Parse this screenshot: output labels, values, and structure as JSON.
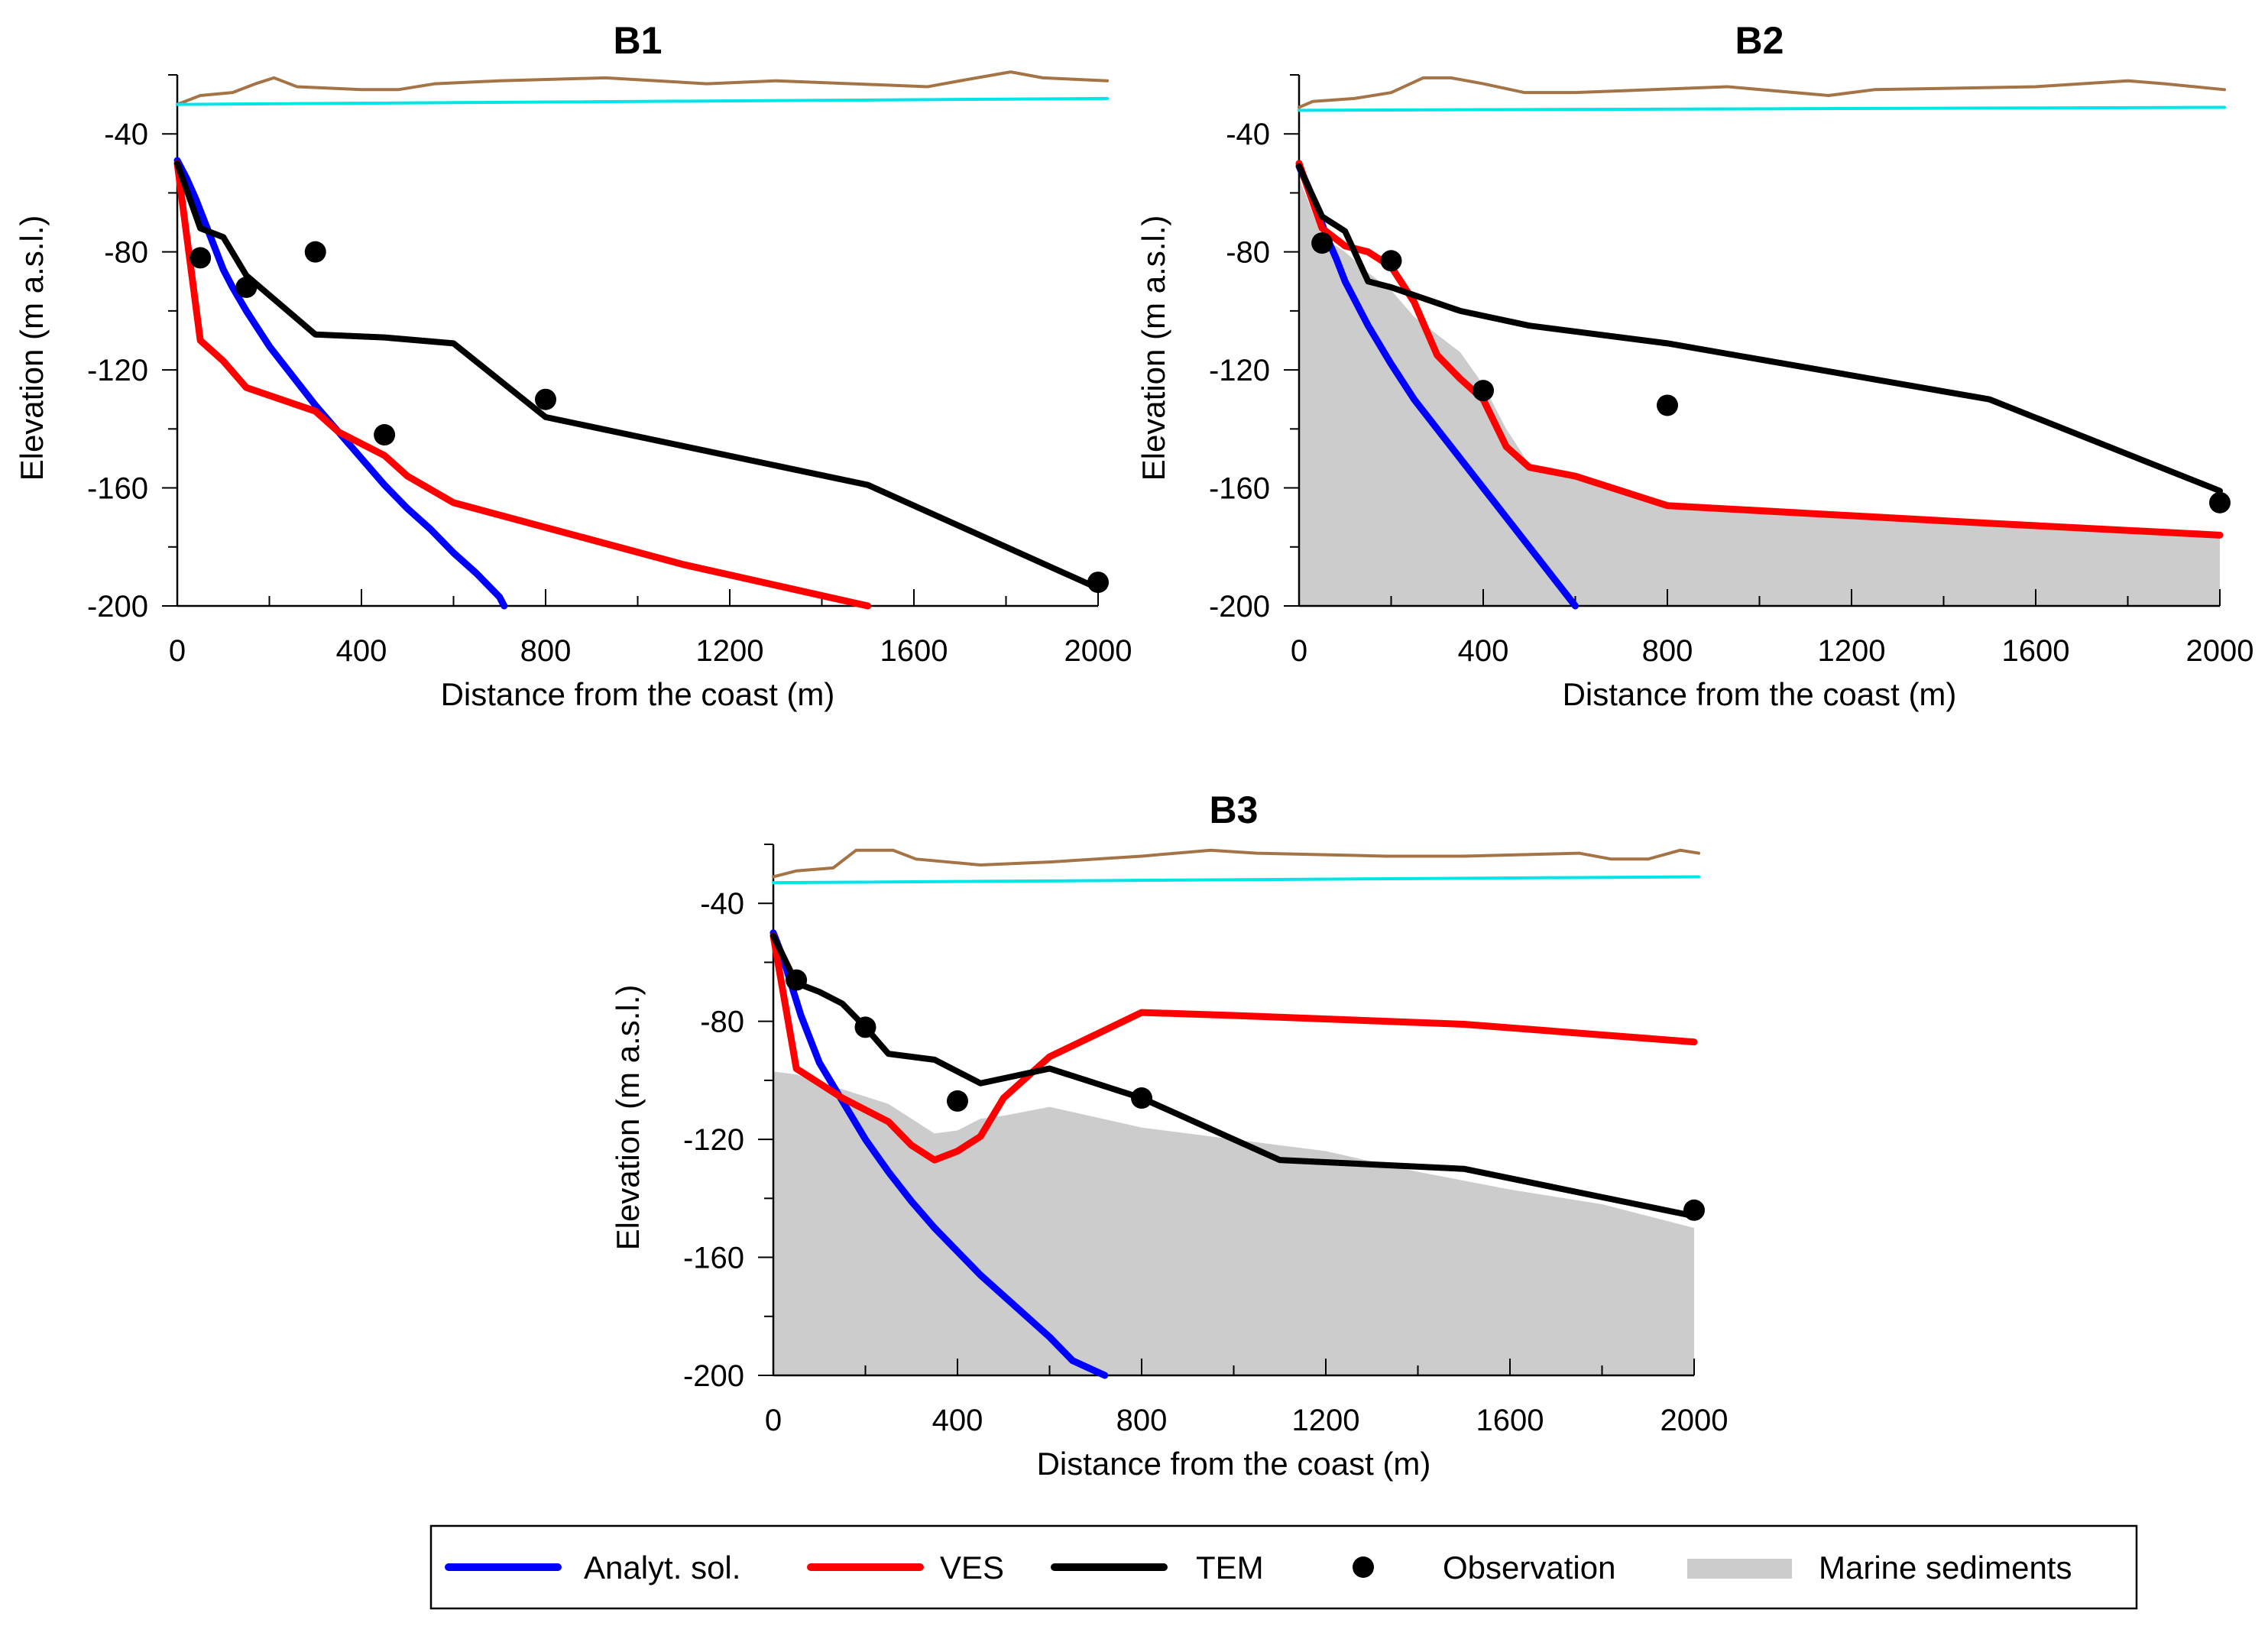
{
  "chart_data": [
    {
      "type": "line",
      "title": "B1",
      "xlabel": "Distance from the coast (m)",
      "ylabel": "Elevation (m a.s.l.)",
      "xlim": [
        0,
        2000
      ],
      "ylim": [
        -200,
        -20
      ],
      "xticks": [
        0,
        400,
        800,
        1200,
        1600,
        2000
      ],
      "yticks": [
        -40,
        -80,
        -120,
        -160,
        -200
      ],
      "series": [
        {
          "name": "Topography",
          "color": "#a57446",
          "points": [
            [
              0,
              -30
            ],
            [
              50,
              -27
            ],
            [
              120,
              -26
            ],
            [
              170,
              -23
            ],
            [
              210,
              -21
            ],
            [
              260,
              -24
            ],
            [
              400,
              -25
            ],
            [
              480,
              -25
            ],
            [
              560,
              -23
            ],
            [
              700,
              -22
            ],
            [
              930,
              -21
            ],
            [
              1150,
              -23
            ],
            [
              1300,
              -22
            ],
            [
              1630,
              -24
            ],
            [
              1700,
              -22
            ],
            [
              1810,
              -19
            ],
            [
              1880,
              -21
            ],
            [
              2020,
              -22
            ]
          ]
        },
        {
          "name": "Sea level",
          "color": "#00e5e5",
          "points": [
            [
              0,
              -30
            ],
            [
              2020,
              -28
            ]
          ]
        },
        {
          "name": "Analyt. sol.",
          "color": "#0000ff",
          "points": [
            [
              0,
              -49
            ],
            [
              20,
              -55
            ],
            [
              40,
              -62
            ],
            [
              60,
              -70
            ],
            [
              80,
              -78
            ],
            [
              100,
              -86
            ],
            [
              120,
              -92
            ],
            [
              150,
              -100
            ],
            [
              200,
              -112
            ],
            [
              250,
              -122
            ],
            [
              300,
              -132
            ],
            [
              350,
              -141
            ],
            [
              400,
              -150
            ],
            [
              450,
              -159
            ],
            [
              500,
              -167
            ],
            [
              550,
              -174
            ],
            [
              600,
              -182
            ],
            [
              650,
              -189
            ],
            [
              700,
              -197
            ],
            [
              710,
              -200
            ]
          ]
        },
        {
          "name": "VES",
          "color": "#ff0000",
          "points": [
            [
              0,
              -50
            ],
            [
              50,
              -110
            ],
            [
              100,
              -117
            ],
            [
              150,
              -126
            ],
            [
              300,
              -134
            ],
            [
              350,
              -141
            ],
            [
              450,
              -149
            ],
            [
              500,
              -156
            ],
            [
              600,
              -165
            ],
            [
              1100,
              -186
            ],
            [
              1500,
              -200
            ]
          ]
        },
        {
          "name": "TEM",
          "color": "#000000",
          "points": [
            [
              0,
              -50
            ],
            [
              50,
              -72
            ],
            [
              100,
              -75
            ],
            [
              150,
              -88
            ],
            [
              300,
              -108
            ],
            [
              450,
              -109
            ],
            [
              600,
              -111
            ],
            [
              800,
              -136
            ],
            [
              1500,
              -159
            ],
            [
              2000,
              -194
            ]
          ]
        },
        {
          "name": "Observation",
          "color": "#000000",
          "points": [
            [
              50,
              -82
            ],
            [
              150,
              -92
            ],
            [
              300,
              -80
            ],
            [
              450,
              -142
            ],
            [
              800,
              -130
            ],
            [
              2000,
              -192
            ]
          ]
        }
      ]
    },
    {
      "type": "line",
      "title": "B2",
      "xlabel": "Distance from the coast (m)",
      "ylabel": "Elevation (m a.s.l.)",
      "xlim": [
        0,
        2000
      ],
      "ylim": [
        -200,
        -20
      ],
      "xticks": [
        0,
        400,
        800,
        1200,
        1600,
        2000
      ],
      "yticks": [
        -40,
        -80,
        -120,
        -160,
        -200
      ],
      "series": [
        {
          "name": "Marine sediments",
          "color": "#cccccc",
          "points": [
            [
              0,
              -55
            ],
            [
              50,
              -75
            ],
            [
              100,
              -80
            ],
            [
              150,
              -87
            ],
            [
              200,
              -93
            ],
            [
              250,
              -102
            ],
            [
              350,
              -114
            ],
            [
              400,
              -125
            ],
            [
              450,
              -140
            ],
            [
              500,
              -152
            ],
            [
              600,
              -156
            ],
            [
              800,
              -166
            ],
            [
              1500,
              -172
            ],
            [
              2000,
              -177
            ]
          ]
        },
        {
          "name": "Topography",
          "color": "#a57446",
          "points": [
            [
              0,
              -31
            ],
            [
              30,
              -29
            ],
            [
              120,
              -28
            ],
            [
              200,
              -26
            ],
            [
              270,
              -21
            ],
            [
              330,
              -21
            ],
            [
              400,
              -23
            ],
            [
              490,
              -26
            ],
            [
              600,
              -26
            ],
            [
              930,
              -24
            ],
            [
              1150,
              -27
            ],
            [
              1250,
              -25
            ],
            [
              1600,
              -24
            ],
            [
              1800,
              -22
            ],
            [
              1880,
              -23
            ],
            [
              2010,
              -25
            ]
          ]
        },
        {
          "name": "Sea level",
          "color": "#00e5e5",
          "points": [
            [
              0,
              -32
            ],
            [
              2010,
              -31
            ]
          ]
        },
        {
          "name": "Analyt. sol.",
          "color": "#0000ff",
          "points": [
            [
              0,
              -51
            ],
            [
              20,
              -58
            ],
            [
              40,
              -66
            ],
            [
              60,
              -75
            ],
            [
              80,
              -82
            ],
            [
              100,
              -90
            ],
            [
              150,
              -105
            ],
            [
              200,
              -118
            ],
            [
              250,
              -130
            ],
            [
              300,
              -140
            ],
            [
              350,
              -150
            ],
            [
              400,
              -160
            ],
            [
              450,
              -170
            ],
            [
              500,
              -180
            ],
            [
              550,
              -190
            ],
            [
              600,
              -200
            ]
          ]
        },
        {
          "name": "VES",
          "color": "#ff0000",
          "points": [
            [
              0,
              -50
            ],
            [
              50,
              -72
            ],
            [
              100,
              -78
            ],
            [
              150,
              -80
            ],
            [
              200,
              -85
            ],
            [
              250,
              -97
            ],
            [
              300,
              -115
            ],
            [
              350,
              -123
            ],
            [
              400,
              -130
            ],
            [
              450,
              -146
            ],
            [
              500,
              -153
            ],
            [
              600,
              -156
            ],
            [
              800,
              -166
            ],
            [
              1500,
              -172
            ],
            [
              2000,
              -176
            ]
          ]
        },
        {
          "name": "TEM",
          "color": "#000000",
          "points": [
            [
              0,
              -51
            ],
            [
              50,
              -68
            ],
            [
              100,
              -73
            ],
            [
              150,
              -90
            ],
            [
              200,
              -92
            ],
            [
              350,
              -100
            ],
            [
              500,
              -105
            ],
            [
              800,
              -111
            ],
            [
              1500,
              -130
            ],
            [
              2000,
              -161
            ]
          ]
        },
        {
          "name": "Observation",
          "color": "#000000",
          "points": [
            [
              50,
              -77
            ],
            [
              200,
              -83
            ],
            [
              400,
              -127
            ],
            [
              800,
              -132
            ],
            [
              2000,
              -165
            ]
          ]
        }
      ]
    },
    {
      "type": "line",
      "title": "B3",
      "xlabel": "Distance from the coast (m)",
      "ylabel": "Elevation (m a.s.l.)",
      "xlim": [
        0,
        2000
      ],
      "ylim": [
        -200,
        -20
      ],
      "xticks": [
        0,
        400,
        800,
        1200,
        1600,
        2000
      ],
      "yticks": [
        -40,
        -80,
        -120,
        -160,
        -200
      ],
      "series": [
        {
          "name": "Marine sediments",
          "color": "#cccccc",
          "points": [
            [
              0,
              -97
            ],
            [
              50,
              -98
            ],
            [
              100,
              -101
            ],
            [
              150,
              -103
            ],
            [
              250,
              -108
            ],
            [
              350,
              -118
            ],
            [
              400,
              -117
            ],
            [
              450,
              -113
            ],
            [
              500,
              -112
            ],
            [
              600,
              -109
            ],
            [
              800,
              -116
            ],
            [
              1000,
              -120
            ],
            [
              1200,
              -124
            ],
            [
              1400,
              -131
            ],
            [
              1600,
              -137
            ],
            [
              1800,
              -142
            ],
            [
              2000,
              -150
            ]
          ]
        },
        {
          "name": "Topography",
          "color": "#a57446",
          "points": [
            [
              0,
              -31
            ],
            [
              50,
              -29
            ],
            [
              130,
              -28
            ],
            [
              180,
              -22
            ],
            [
              260,
              -22
            ],
            [
              310,
              -25
            ],
            [
              450,
              -27
            ],
            [
              600,
              -26
            ],
            [
              800,
              -24
            ],
            [
              950,
              -22
            ],
            [
              1050,
              -23
            ],
            [
              1330,
              -24
            ],
            [
              1500,
              -24
            ],
            [
              1750,
              -23
            ],
            [
              1820,
              -25
            ],
            [
              1900,
              -25
            ],
            [
              1970,
              -22
            ],
            [
              2010,
              -23
            ]
          ]
        },
        {
          "name": "Sea level",
          "color": "#00e5e5",
          "points": [
            [
              0,
              -33
            ],
            [
              2010,
              -31
            ]
          ]
        },
        {
          "name": "Analyt. sol.",
          "color": "#0000ff",
          "points": [
            [
              0,
              -50
            ],
            [
              20,
              -58
            ],
            [
              40,
              -68
            ],
            [
              60,
              -78
            ],
            [
              80,
              -86
            ],
            [
              100,
              -94
            ],
            [
              150,
              -107
            ],
            [
              200,
              -120
            ],
            [
              250,
              -131
            ],
            [
              300,
              -141
            ],
            [
              350,
              -150
            ],
            [
              400,
              -158
            ],
            [
              450,
              -166
            ],
            [
              500,
              -173
            ],
            [
              550,
              -180
            ],
            [
              600,
              -187
            ],
            [
              650,
              -195
            ],
            [
              720,
              -200
            ]
          ]
        },
        {
          "name": "VES",
          "color": "#ff0000",
          "points": [
            [
              0,
              -51
            ],
            [
              50,
              -96
            ],
            [
              100,
              -101
            ],
            [
              150,
              -106
            ],
            [
              200,
              -110
            ],
            [
              250,
              -114
            ],
            [
              300,
              -122
            ],
            [
              350,
              -127
            ],
            [
              400,
              -124
            ],
            [
              450,
              -119
            ],
            [
              500,
              -106
            ],
            [
              600,
              -92
            ],
            [
              800,
              -77
            ],
            [
              1000,
              -78
            ],
            [
              1500,
              -81
            ],
            [
              2000,
              -87
            ]
          ]
        },
        {
          "name": "TEM",
          "color": "#000000",
          "points": [
            [
              0,
              -51
            ],
            [
              50,
              -67
            ],
            [
              100,
              -70
            ],
            [
              150,
              -74
            ],
            [
              200,
              -82
            ],
            [
              250,
              -91
            ],
            [
              350,
              -93
            ],
            [
              450,
              -101
            ],
            [
              600,
              -96
            ],
            [
              800,
              -106
            ],
            [
              1100,
              -127
            ],
            [
              1500,
              -130
            ],
            [
              2000,
              -146
            ]
          ]
        },
        {
          "name": "Observation",
          "color": "#000000",
          "points": [
            [
              50,
              -66
            ],
            [
              200,
              -82
            ],
            [
              400,
              -107
            ],
            [
              800,
              -106
            ],
            [
              2000,
              -144
            ]
          ]
        }
      ]
    }
  ],
  "legend": {
    "position": "bottom-center",
    "items": [
      {
        "label": "Analyt. sol.",
        "kind": "line",
        "color": "#0000ff"
      },
      {
        "label": "VES",
        "kind": "line",
        "color": "#ff0000"
      },
      {
        "label": "TEM",
        "kind": "line",
        "color": "#000000"
      },
      {
        "label": "Observation",
        "kind": "marker",
        "color": "#000000"
      },
      {
        "label": "Marine sediments",
        "kind": "patch",
        "color": "#cccccc"
      }
    ]
  }
}
